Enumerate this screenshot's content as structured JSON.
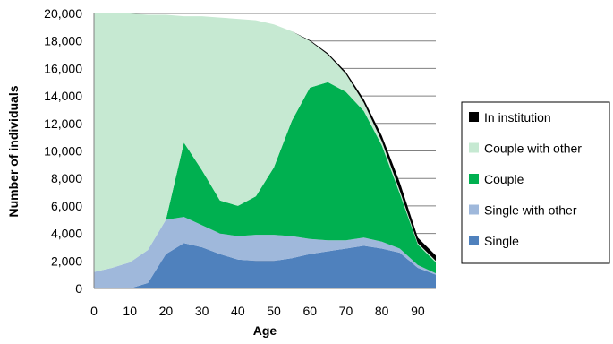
{
  "chart_data": {
    "type": "area",
    "stacked": true,
    "xlabel": "Age",
    "ylabel": "Number of individuals",
    "xlim": [
      0,
      95
    ],
    "ylim": [
      0,
      20000
    ],
    "x_ticks": [
      0,
      10,
      20,
      30,
      40,
      50,
      60,
      70,
      80,
      90
    ],
    "x_tick_labels": [
      "0",
      "10",
      "20",
      "30",
      "40",
      "50",
      "60",
      "70",
      "80",
      "90"
    ],
    "y_ticks": [
      0,
      2000,
      4000,
      6000,
      8000,
      10000,
      12000,
      14000,
      16000,
      18000,
      20000
    ],
    "y_tick_labels": [
      "0",
      "2,000",
      "4,000",
      "6,000",
      "8,000",
      "10,000",
      "12,000",
      "14,000",
      "16,000",
      "18,000",
      "20,000"
    ],
    "grid": "horizontal",
    "legend_position": "right",
    "x": [
      0,
      5,
      10,
      15,
      20,
      25,
      30,
      35,
      40,
      45,
      50,
      55,
      60,
      65,
      70,
      75,
      80,
      85,
      90,
      95
    ],
    "series": [
      {
        "name": "Single",
        "color": "#4f81bd",
        "values": [
          0,
          0,
          0,
          400,
          2500,
          3300,
          3000,
          2500,
          2100,
          2000,
          2000,
          2200,
          2500,
          2700,
          2900,
          3100,
          2900,
          2600,
          1500,
          1000
        ]
      },
      {
        "name": "Single with other",
        "color": "#9fb8db",
        "values": [
          1200,
          1500,
          1900,
          2400,
          2500,
          1900,
          1600,
          1500,
          1700,
          1900,
          1900,
          1600,
          1100,
          800,
          600,
          600,
          500,
          300,
          200,
          100
        ]
      },
      {
        "name": "Couple",
        "color": "#00b050",
        "values": [
          0,
          0,
          0,
          0,
          0,
          5400,
          4000,
          2400,
          2200,
          2800,
          4900,
          8400,
          11000,
          11500,
          10800,
          9200,
          7000,
          4000,
          1500,
          800
        ]
      },
      {
        "name": "Couple with other",
        "color": "#c6e9d2",
        "values": [
          18800,
          18500,
          18100,
          17100,
          14900,
          9200,
          11200,
          13300,
          13600,
          12800,
          10400,
          6500,
          3400,
          2000,
          1300,
          600,
          300,
          200,
          100,
          100
        ]
      },
      {
        "name": "In institution",
        "color": "#000000",
        "values": [
          0,
          0,
          0,
          0,
          0,
          0,
          0,
          0,
          0,
          0,
          0,
          0,
          50,
          100,
          150,
          250,
          400,
          600,
          400,
          400
        ]
      }
    ]
  }
}
